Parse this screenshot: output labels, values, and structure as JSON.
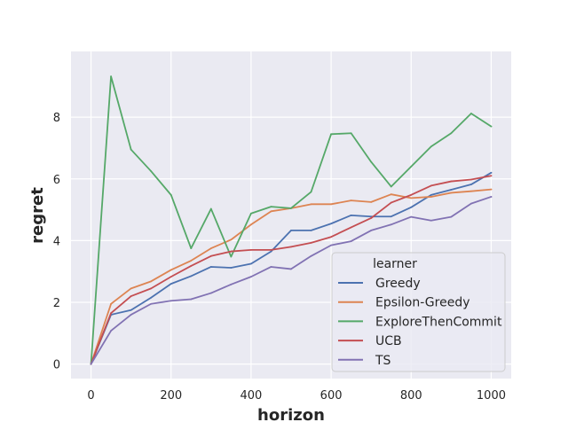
{
  "chart_data": {
    "type": "line",
    "xlabel": "horizon",
    "ylabel": "regret",
    "xlim": [
      -50,
      1050
    ],
    "ylim": [
      -0.47,
      10.13
    ],
    "x_ticks": [
      0,
      200,
      400,
      600,
      800,
      1000
    ],
    "y_ticks": [
      0,
      2,
      4,
      6,
      8
    ],
    "grid": true,
    "legend_title": "learner",
    "legend_position": "lower right",
    "x": [
      0,
      50,
      100,
      150,
      200,
      250,
      300,
      350,
      400,
      450,
      500,
      550,
      600,
      650,
      700,
      750,
      800,
      850,
      900,
      950,
      1000
    ],
    "series": [
      {
        "name": "Greedy",
        "color": "#4c72b0",
        "values": [
          0,
          1.6,
          1.75,
          2.15,
          2.6,
          2.85,
          3.15,
          3.12,
          3.25,
          3.65,
          4.33,
          4.33,
          4.55,
          4.82,
          4.78,
          4.78,
          5.08,
          5.48,
          5.65,
          5.82,
          6.2
        ]
      },
      {
        "name": "Epsilon-Greedy",
        "color": "#dd8452",
        "values": [
          0,
          1.95,
          2.45,
          2.68,
          3.05,
          3.35,
          3.75,
          4.03,
          4.52,
          4.95,
          5.05,
          5.18,
          5.18,
          5.3,
          5.25,
          5.5,
          5.38,
          5.42,
          5.55,
          5.6,
          5.66
        ]
      },
      {
        "name": "ExploreThenCommit",
        "color": "#55a868",
        "values": [
          0,
          9.32,
          6.95,
          6.25,
          5.48,
          3.75,
          5.03,
          3.48,
          4.88,
          5.1,
          5.05,
          5.58,
          7.45,
          7.48,
          6.55,
          5.75,
          6.4,
          7.05,
          7.48,
          8.12,
          7.7
        ]
      },
      {
        "name": "UCB",
        "color": "#c44e52",
        "values": [
          0,
          1.65,
          2.2,
          2.45,
          2.83,
          3.18,
          3.5,
          3.65,
          3.7,
          3.7,
          3.8,
          3.93,
          4.12,
          4.43,
          4.73,
          5.23,
          5.48,
          5.78,
          5.92,
          5.98,
          6.1
        ]
      },
      {
        "name": "TS",
        "color": "#8172b3",
        "values": [
          0,
          1.08,
          1.6,
          1.95,
          2.05,
          2.1,
          2.3,
          2.58,
          2.83,
          3.15,
          3.08,
          3.5,
          3.85,
          3.98,
          4.33,
          4.52,
          4.77,
          4.65,
          4.77,
          5.2,
          5.42
        ]
      }
    ]
  }
}
